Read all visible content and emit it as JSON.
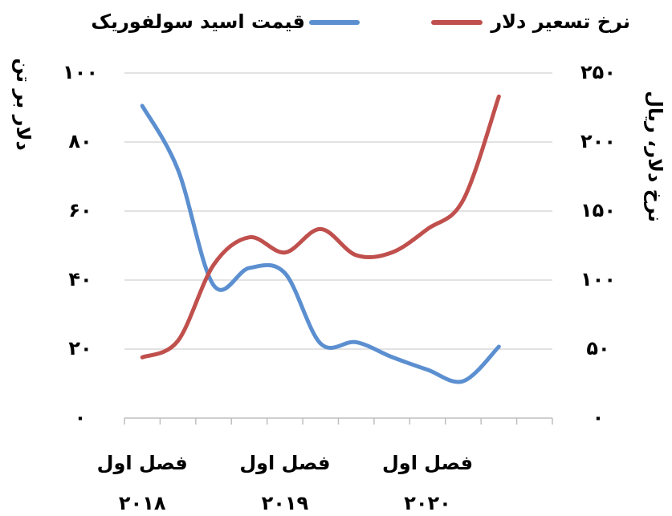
{
  "chart_data": {
    "type": "line",
    "legend_position": "top",
    "y_label": "دلار بر تن",
    "y2_label": "نرخ دلار، ریال",
    "categories": [
      [
        "فصل اول",
        "۲۰۱۸"
      ],
      null,
      null,
      null,
      [
        "فصل اول",
        "۲۰۱۹"
      ],
      null,
      null,
      null,
      [
        "فصل اول",
        "۲۰۲۰"
      ],
      null,
      null,
      null
    ],
    "series": [
      {
        "name": "قیمت اسید سولفوریک",
        "color": "#5b8fd0",
        "axis": "y",
        "values": [
          90.5,
          72,
          38.5,
          43.5,
          42,
          21.6,
          22,
          17.7,
          14,
          10.7,
          20.7,
          null
        ]
      },
      {
        "name": "نرخ تسعیر دلار",
        "color": "#c0504d",
        "axis": "y2",
        "values": [
          44,
          56,
          111,
          131,
          120,
          137,
          118,
          120,
          137,
          158,
          233,
          null
        ]
      }
    ],
    "ylim": [
      0,
      100
    ],
    "yticks": [
      {
        "value": 0,
        "label": "۰"
      },
      {
        "value": 20,
        "label": "۲۰"
      },
      {
        "value": 40,
        "label": "۴۰"
      },
      {
        "value": 60,
        "label": "۶۰"
      },
      {
        "value": 80,
        "label": "۸۰"
      },
      {
        "value": 100,
        "label": "۱۰۰"
      }
    ],
    "y2lim": [
      0,
      250
    ],
    "y2ticks": [
      {
        "value": 0,
        "label": "۰"
      },
      {
        "value": 50,
        "label": "۵۰"
      },
      {
        "value": 100,
        "label": "۱۰۰"
      },
      {
        "value": 150,
        "label": "۱۵۰"
      },
      {
        "value": 200,
        "label": "۲۰۰"
      },
      {
        "value": 250,
        "label": "۲۵۰"
      }
    ],
    "grid": true
  }
}
